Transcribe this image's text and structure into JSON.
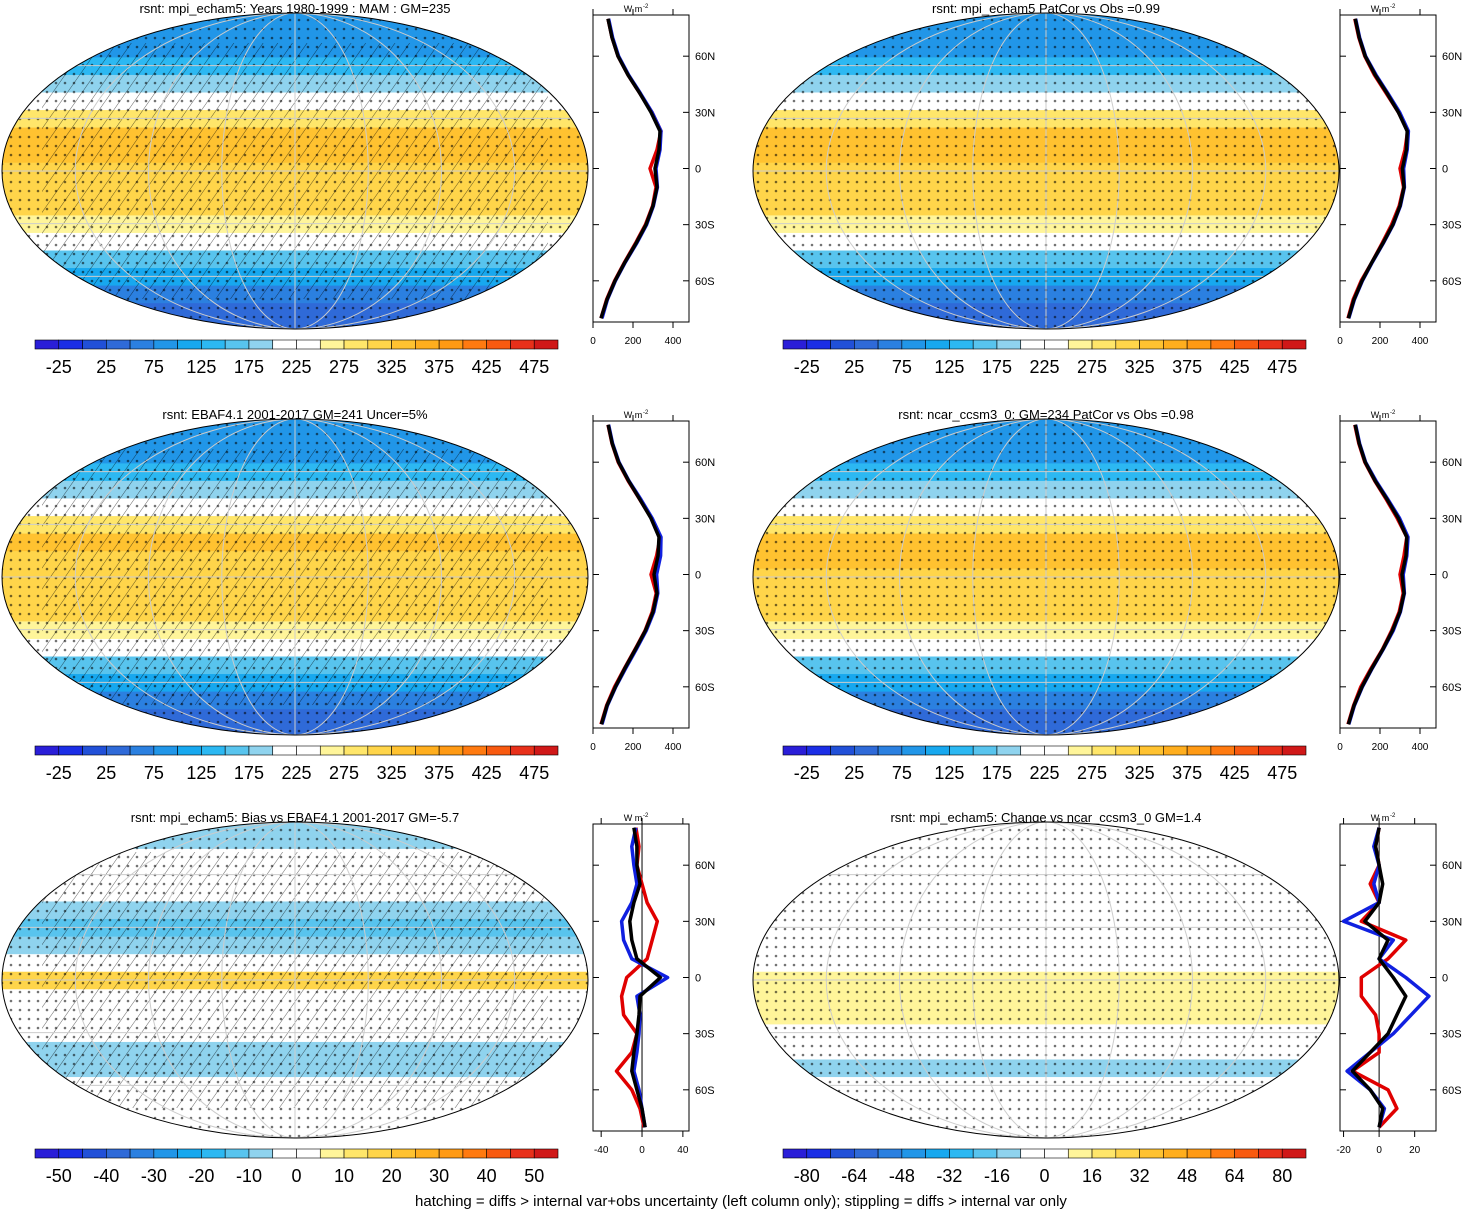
{
  "palette": [
    "#2a1ed8",
    "#1b2ee6",
    "#2150d8",
    "#2f6ad8",
    "#2b80e0",
    "#2196e8",
    "#17a8ef",
    "#2cb8f2",
    "#58c4ee",
    "#8fd3ee",
    "#ffffff",
    "#ffffff",
    "#fff59a",
    "#ffe66a",
    "#ffd54a",
    "#ffc230",
    "#ffae1e",
    "#ff9a14",
    "#ff7a10",
    "#f85a10",
    "#e8301a",
    "#d01818"
  ],
  "zonal_lat": [
    -80,
    -70,
    -60,
    -50,
    -40,
    -30,
    -20,
    -10,
    0,
    10,
    20,
    30,
    40,
    50,
    60,
    70,
    80
  ],
  "zonal_ylim": [
    -82,
    82
  ],
  "zonal_yticks": [
    {
      "value": 60,
      "label": "60N"
    },
    {
      "value": 30,
      "label": "30N"
    },
    0,
    {
      "value": -30,
      "label": "30S"
    },
    {
      "value": -60,
      "label": "60S"
    }
  ],
  "units": "W m",
  "units_exp": "-2",
  "footer": "hatching = diffs > internal var+obs uncertainty (left column only); stippling = diffs > internal var only",
  "panels": [
    {
      "title": "rsnt: mpi_echam5: Years 1980-1999 : MAM : GM=235",
      "hatch": true,
      "colorbar": {
        "lim": [
          -50,
          500
        ],
        "labels": [
          -25,
          25,
          75,
          125,
          175,
          225,
          275,
          325,
          375,
          425,
          475
        ]
      },
      "zonal": {
        "xlim": [
          0,
          480
        ],
        "xticks": [
          0,
          200,
          400
        ],
        "series": [
          {
            "color": "#e00000",
            "values": [
              40,
              68,
              108,
              158,
              212,
              262,
              298,
              315,
              285,
              320,
              340,
              295,
              235,
              175,
              125,
              95,
              75
            ]
          },
          {
            "color": "#1020e0",
            "values": [
              45,
              72,
              112,
              162,
              218,
              268,
              302,
              322,
              315,
              335,
              340,
              295,
              238,
              178,
              128,
              98,
              78
            ]
          },
          {
            "color": "#000000",
            "values": [
              40,
              70,
              110,
              160,
              215,
              265,
              300,
              320,
              310,
              330,
              335,
              290,
              235,
              175,
              125,
              95,
              75
            ]
          }
        ]
      }
    },
    {
      "title": "rsnt: mpi_echam5 PatCor vs Obs =0.99",
      "hatch": false,
      "colorbar": {
        "lim": [
          -50,
          500
        ],
        "labels": [
          -25,
          25,
          75,
          125,
          175,
          225,
          275,
          325,
          375,
          425,
          475
        ]
      },
      "zonal": {
        "xlim": [
          0,
          480
        ],
        "xticks": [
          0,
          200,
          400
        ],
        "series": [
          {
            "color": "#e00000",
            "values": [
              40,
              66,
              106,
              160,
              210,
              258,
              296,
              318,
              300,
              325,
              338,
              292,
              232,
              172,
              124,
              94,
              74
            ]
          },
          {
            "color": "#1020e0",
            "values": [
              44,
              72,
              112,
              162,
              216,
              266,
              302,
              322,
              318,
              336,
              342,
              298,
              240,
              180,
              128,
              98,
              78
            ]
          },
          {
            "color": "#000000",
            "values": [
              42,
              70,
              110,
              160,
              214,
              264,
              300,
              320,
              312,
              332,
              336,
              292,
              236,
              176,
              126,
              96,
              76
            ]
          }
        ]
      }
    },
    {
      "title": "rsnt: EBAF4.1 2001-2017 GM=241 Uncer=5%",
      "hatch": true,
      "colorbar": {
        "lim": [
          -50,
          500
        ],
        "labels": [
          -25,
          25,
          75,
          125,
          175,
          225,
          275,
          325,
          375,
          425,
          475
        ]
      },
      "zonal": {
        "xlim": [
          0,
          480
        ],
        "xticks": [
          0,
          200,
          400
        ],
        "series": [
          {
            "color": "#e00000",
            "values": [
              40,
              68,
              108,
              158,
              210,
              260,
              296,
              316,
              290,
              318,
              336,
              292,
              234,
              176,
              126,
              95,
              75
            ]
          },
          {
            "color": "#1020e0",
            "values": [
              45,
              72,
              114,
              164,
              216,
              266,
              304,
              324,
              318,
              338,
              340,
              296,
              240,
              180,
              130,
              98,
              78
            ]
          },
          {
            "color": "#000000",
            "values": [
              42,
              70,
              112,
              160,
              212,
              262,
              300,
              320,
              305,
              325,
              330,
              290,
              235,
              178,
              128,
              96,
              76
            ]
          }
        ]
      }
    },
    {
      "title": "rsnt: ncar_ccsm3_0: GM=234 PatCor vs Obs =0.98",
      "hatch": false,
      "colorbar": {
        "lim": [
          -50,
          500
        ],
        "labels": [
          -25,
          25,
          75,
          125,
          175,
          225,
          275,
          325,
          375,
          425,
          475
        ]
      },
      "zonal": {
        "xlim": [
          0,
          480
        ],
        "xticks": [
          0,
          200,
          400
        ],
        "series": [
          {
            "color": "#e00000",
            "values": [
              40,
              68,
              104,
              156,
              212,
              258,
              296,
              316,
              300,
              320,
              334,
              286,
              232,
              174,
              124,
              94,
              74
            ]
          },
          {
            "color": "#1020e0",
            "values": [
              44,
              72,
              112,
              162,
              216,
              266,
              302,
              322,
              316,
              334,
              340,
              298,
              240,
              180,
              128,
              98,
              78
            ]
          },
          {
            "color": "#000000",
            "values": [
              42,
              70,
              110,
              160,
              214,
              262,
              300,
              320,
              310,
              330,
              334,
              292,
              236,
              176,
              126,
              96,
              76
            ]
          }
        ]
      }
    },
    {
      "title": "rsnt: mpi_echam5: Bias vs EBAF4.1 2001-2017 GM=-5.7",
      "hatch": true,
      "colorbar": {
        "lim": [
          -55,
          55
        ],
        "labels": [
          -50,
          -40,
          -30,
          -20,
          -10,
          0,
          10,
          20,
          30,
          40,
          50
        ]
      },
      "zonal": {
        "xlim": [
          -48,
          46
        ],
        "xticks": [
          -40,
          0,
          40
        ],
        "series": [
          {
            "color": "#e00000",
            "values": [
              2,
              -2,
              -10,
              -25,
              -10,
              -5,
              -18,
              -20,
              -15,
              5,
              10,
              15,
              5,
              0,
              -5,
              -3,
              -6
            ]
          },
          {
            "color": "#1020e0",
            "values": [
              3,
              0,
              -3,
              -8,
              -5,
              -3,
              -2,
              -5,
              25,
              -10,
              -18,
              -20,
              -10,
              -5,
              -8,
              -10,
              -6
            ]
          },
          {
            "color": "#000000",
            "values": [
              3,
              0,
              -5,
              -10,
              -8,
              -5,
              -3,
              -2,
              18,
              -5,
              -10,
              -12,
              -8,
              -2,
              -5,
              -5,
              -8
            ]
          }
        ]
      }
    },
    {
      "title": "rsnt: mpi_echam5: Change vs ncar_ccsm3_0 GM=1.4",
      "hatch": false,
      "colorbar": {
        "lim": [
          -88,
          88
        ],
        "labels": [
          -80,
          -64,
          -48,
          -32,
          -16,
          0,
          16,
          32,
          48,
          64,
          80
        ]
      },
      "zonal": {
        "xlim": [
          -22,
          32
        ],
        "xticks": [
          -20,
          0,
          20
        ],
        "series": [
          {
            "color": "#e00000",
            "values": [
              0,
              10,
              5,
              -15,
              0,
              0,
              -2,
              -10,
              -10,
              5,
              15,
              -10,
              0,
              -5,
              0,
              -2,
              0
            ]
          },
          {
            "color": "#1020e0",
            "values": [
              0,
              3,
              -5,
              -18,
              -5,
              8,
              18,
              28,
              15,
              0,
              8,
              -20,
              0,
              -3,
              0,
              -3,
              0
            ]
          },
          {
            "color": "#000000",
            "values": [
              0,
              2,
              -5,
              -15,
              -5,
              5,
              10,
              15,
              8,
              0,
              5,
              -8,
              0,
              2,
              0,
              -2,
              0
            ]
          }
        ]
      }
    }
  ]
}
